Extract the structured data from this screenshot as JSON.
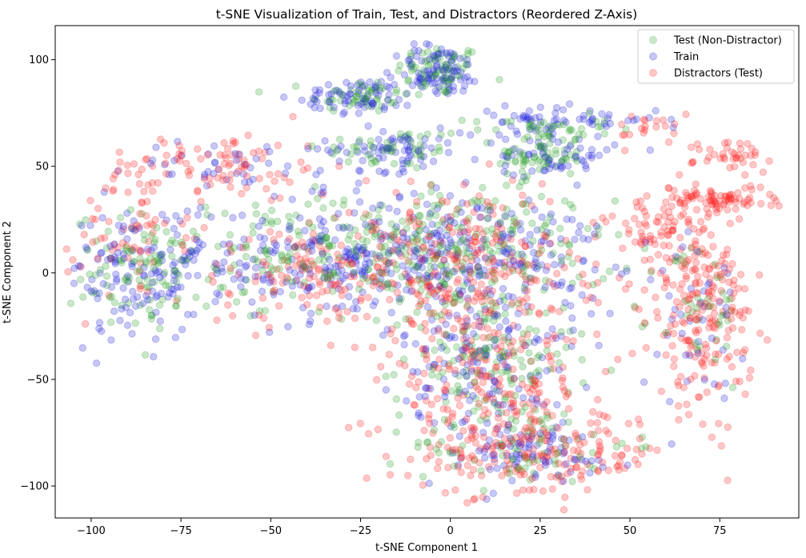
{
  "chart_data": {
    "type": "scatter",
    "title": "t-SNE Visualization of Train, Test, and Distractors (Reordered Z-Axis)",
    "xlabel": "t-SNE Component 1",
    "ylabel": "t-SNE Component 2",
    "xlim": [
      -110,
      97
    ],
    "ylim": [
      -115,
      116
    ],
    "xticks": [
      -100,
      -75,
      -50,
      -25,
      0,
      25,
      50,
      75
    ],
    "yticks": [
      -100,
      -50,
      0,
      50,
      100
    ],
    "grid": false,
    "legend_position": "top-right",
    "marker_alpha": 0.25,
    "series": [
      {
        "name": "Test (Non-Distractor)",
        "color": "#2ca02c",
        "clusters": [
          {
            "cx": -3,
            "cy": 95,
            "sx": 6,
            "sy": 6,
            "n": 70
          },
          {
            "cx": -25,
            "cy": 83,
            "sx": 7,
            "sy": 4,
            "n": 50
          },
          {
            "cx": -17,
            "cy": 58,
            "sx": 10,
            "sy": 5,
            "n": 50
          },
          {
            "cx": 25,
            "cy": 55,
            "sx": 6,
            "sy": 6,
            "n": 70
          },
          {
            "cx": 25,
            "cy": 68,
            "sx": 10,
            "sy": 3,
            "n": 35
          },
          {
            "cx": -35,
            "cy": 10,
            "sx": 22,
            "sy": 12,
            "n": 180
          },
          {
            "cx": -85,
            "cy": 0,
            "sx": 10,
            "sy": 14,
            "n": 90
          },
          {
            "cx": 5,
            "cy": 10,
            "sx": 20,
            "sy": 15,
            "n": 200
          },
          {
            "cx": 10,
            "cy": -40,
            "sx": 12,
            "sy": 18,
            "n": 140
          },
          {
            "cx": 20,
            "cy": -80,
            "sx": 15,
            "sy": 10,
            "n": 80
          },
          {
            "cx": 70,
            "cy": -20,
            "sx": 6,
            "sy": 18,
            "n": 40
          }
        ]
      },
      {
        "name": "Train",
        "color": "#1f1fdd",
        "clusters": [
          {
            "cx": -3,
            "cy": 95,
            "sx": 6,
            "sy": 6,
            "n": 90
          },
          {
            "cx": -25,
            "cy": 83,
            "sx": 8,
            "sy": 4,
            "n": 70
          },
          {
            "cx": -17,
            "cy": 58,
            "sx": 10,
            "sy": 5,
            "n": 70
          },
          {
            "cx": 30,
            "cy": 55,
            "sx": 8,
            "sy": 6,
            "n": 60
          },
          {
            "cx": 30,
            "cy": 72,
            "sx": 14,
            "sy": 3,
            "n": 60
          },
          {
            "cx": -40,
            "cy": 5,
            "sx": 24,
            "sy": 14,
            "n": 220
          },
          {
            "cx": -88,
            "cy": 0,
            "sx": 9,
            "sy": 16,
            "n": 110
          },
          {
            "cx": 5,
            "cy": 10,
            "sx": 20,
            "sy": 15,
            "n": 220
          },
          {
            "cx": 10,
            "cy": -40,
            "sx": 12,
            "sy": 18,
            "n": 140
          },
          {
            "cx": 20,
            "cy": -85,
            "sx": 15,
            "sy": 8,
            "n": 80
          },
          {
            "cx": 70,
            "cy": -20,
            "sx": 6,
            "sy": 18,
            "n": 40
          },
          {
            "cx": -60,
            "cy": 50,
            "sx": 14,
            "sy": 6,
            "n": 40
          }
        ]
      },
      {
        "name": "Distractors (Test)",
        "color": "#ff2020",
        "clusters": [
          {
            "cx": -65,
            "cy": 50,
            "sx": 16,
            "sy": 8,
            "n": 90
          },
          {
            "cx": -90,
            "cy": 20,
            "sx": 8,
            "sy": 12,
            "n": 60
          },
          {
            "cx": -35,
            "cy": 0,
            "sx": 22,
            "sy": 14,
            "n": 160
          },
          {
            "cx": 5,
            "cy": 5,
            "sx": 20,
            "sy": 18,
            "n": 220
          },
          {
            "cx": 10,
            "cy": -50,
            "sx": 14,
            "sy": 20,
            "n": 220
          },
          {
            "cx": 25,
            "cy": -85,
            "sx": 18,
            "sy": 10,
            "n": 180
          },
          {
            "cx": 70,
            "cy": -20,
            "sx": 7,
            "sy": 22,
            "n": 200
          },
          {
            "cx": 60,
            "cy": 20,
            "sx": 8,
            "sy": 10,
            "n": 90
          },
          {
            "cx": 75,
            "cy": 35,
            "sx": 8,
            "sy": 3,
            "n": 70
          },
          {
            "cx": 80,
            "cy": 55,
            "sx": 6,
            "sy": 4,
            "n": 40
          },
          {
            "cx": 55,
            "cy": 68,
            "sx": 5,
            "sy": 4,
            "n": 20
          }
        ]
      }
    ]
  }
}
